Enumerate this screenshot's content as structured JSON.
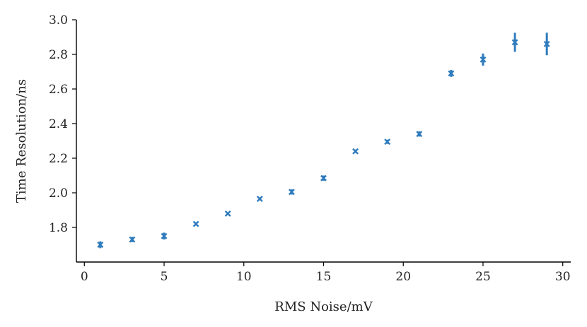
{
  "chart_data": {
    "type": "scatter",
    "title": "",
    "xlabel": "RMS Noise/mV",
    "ylabel": "Time Resolution/ns",
    "xlim": [
      -0.5,
      30.5
    ],
    "ylim": [
      1.6,
      3.0
    ],
    "x_ticks": [
      0,
      5,
      10,
      15,
      20,
      25,
      30
    ],
    "x_tick_labels": [
      "0",
      "5",
      "10",
      "15",
      "20",
      "25",
      "30"
    ],
    "y_ticks": [
      1.8,
      2.0,
      2.2,
      2.4,
      2.6,
      2.8,
      3.0
    ],
    "y_tick_labels": [
      "1.8",
      "2.0",
      "2.2",
      "2.4",
      "2.6",
      "2.8",
      "3.0"
    ],
    "grid": false,
    "marker": "x",
    "color": "#2f7bbd",
    "series": [
      {
        "points": [
          {
            "x": 1,
            "y": 1.7,
            "err": 0.02
          },
          {
            "x": 3,
            "y": 1.73,
            "err": 0.015
          },
          {
            "x": 5,
            "y": 1.75,
            "err": 0.02
          },
          {
            "x": 7,
            "y": 1.82,
            "err": 0.01
          },
          {
            "x": 9,
            "y": 1.88,
            "err": 0.008
          },
          {
            "x": 11,
            "y": 1.965,
            "err": 0.008
          },
          {
            "x": 13,
            "y": 2.005,
            "err": 0.015
          },
          {
            "x": 15,
            "y": 2.085,
            "err": 0.015
          },
          {
            "x": 17,
            "y": 2.24,
            "err": 0.01
          },
          {
            "x": 19,
            "y": 2.295,
            "err": 0.012
          },
          {
            "x": 21,
            "y": 2.34,
            "err": 0.015
          },
          {
            "x": 23,
            "y": 2.69,
            "err": 0.02
          },
          {
            "x": 25,
            "y": 2.77,
            "err": 0.035
          },
          {
            "x": 27,
            "y": 2.87,
            "err": 0.055
          },
          {
            "x": 29,
            "y": 2.86,
            "err": 0.065
          }
        ]
      }
    ]
  }
}
